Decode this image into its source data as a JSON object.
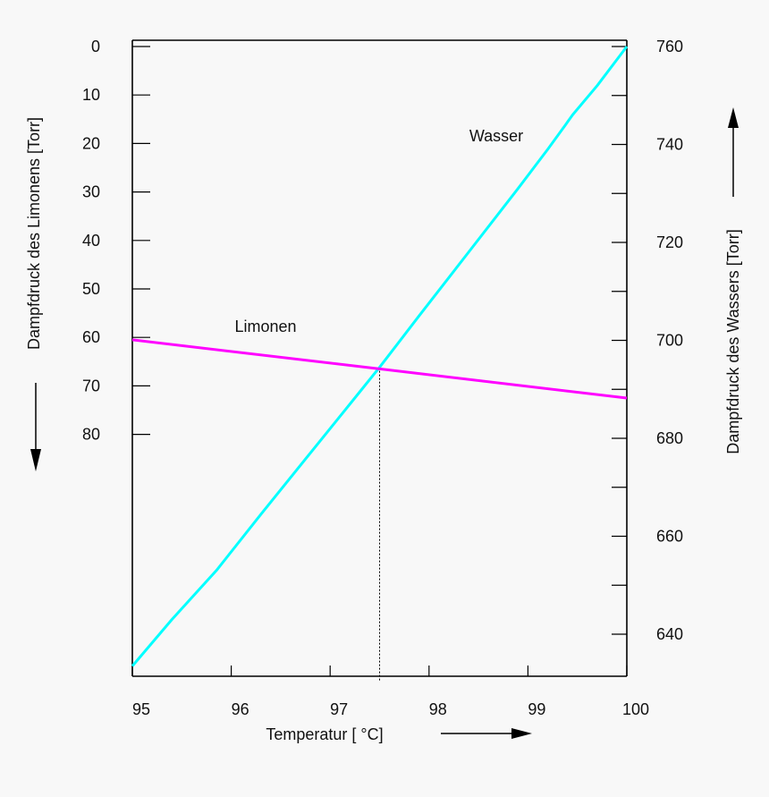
{
  "chart_data": {
    "type": "line",
    "x": {
      "label": "Temperatur [ °C]",
      "ticks": [
        95,
        96,
        97,
        98,
        99,
        100
      ],
      "tick_labels": [
        "95",
        "96",
        "97",
        "98",
        "99",
        "100"
      ],
      "range": [
        95,
        100
      ]
    },
    "y_left": {
      "label": "Dampfdruck des Limonens [Torr]",
      "ticks": [
        0,
        10,
        20,
        30,
        40,
        50,
        60,
        70,
        80
      ],
      "tick_labels": [
        "0",
        "10",
        "20",
        "30",
        "40",
        "50",
        "60",
        "70",
        "80"
      ],
      "inverted": true,
      "range": [
        0,
        130
      ]
    },
    "y_right": {
      "label": "Dampfdruck des Wassers [Torr]",
      "ticks": [
        640,
        650,
        660,
        670,
        680,
        690,
        700,
        710,
        720,
        730,
        740,
        750,
        760
      ],
      "tick_labels": [
        "640",
        "660",
        "680",
        "700",
        "720",
        "740",
        "760"
      ],
      "labeled_ticks": [
        640,
        660,
        680,
        700,
        720,
        740,
        760
      ],
      "range": [
        630.5,
        760
      ]
    },
    "series": [
      {
        "name": "Wasser",
        "axis": "right",
        "color": "#00ffff",
        "points": [
          [
            95.0,
            633.5
          ],
          [
            95.4,
            643
          ],
          [
            95.85,
            653
          ],
          [
            96.3,
            664.5
          ],
          [
            96.8,
            677
          ],
          [
            97.3,
            689.5
          ],
          [
            97.5,
            694.5
          ],
          [
            97.9,
            705
          ],
          [
            98.4,
            718
          ],
          [
            98.9,
            731
          ],
          [
            99.2,
            739
          ],
          [
            99.38,
            744
          ],
          [
            99.45,
            746
          ],
          [
            99.7,
            752
          ],
          [
            100.0,
            760
          ]
        ]
      },
      {
        "name": "Limonen",
        "axis": "left",
        "color": "#ff00ff",
        "points": [
          [
            95.0,
            60.5
          ],
          [
            97.5,
            66.5
          ],
          [
            100.0,
            72.5
          ]
        ]
      }
    ],
    "annotations": [
      {
        "type": "vertical-dotted-line",
        "x": 97.5,
        "from_y_right": 630.5,
        "to_y_right": 694.5
      }
    ],
    "direction_arrows": {
      "left_axis": "down",
      "right_axis": "up",
      "x_axis": "right"
    }
  }
}
